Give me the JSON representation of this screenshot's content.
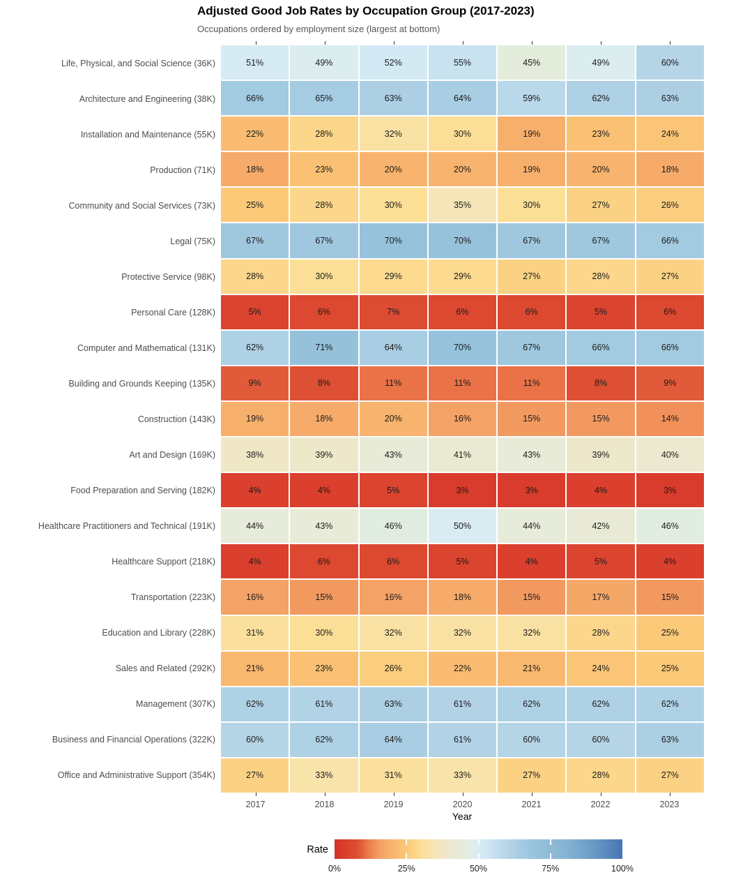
{
  "chart_data": {
    "type": "heatmap",
    "title": "Adjusted Good Job Rates by Occupation Group (2017-2023)",
    "subtitle": "Occupations ordered by employment size (largest at bottom)",
    "xlabel": "Year",
    "x": [
      "2017",
      "2018",
      "2019",
      "2020",
      "2021",
      "2022",
      "2023"
    ],
    "value_suffix": "%",
    "rows": [
      {
        "label": "Life, Physical, and Social Science (36K)",
        "values": [
          51,
          49,
          52,
          55,
          45,
          49,
          60
        ]
      },
      {
        "label": "Architecture and Engineering (38K)",
        "values": [
          66,
          65,
          63,
          64,
          59,
          62,
          63
        ]
      },
      {
        "label": "Installation and Maintenance (55K)",
        "values": [
          22,
          28,
          32,
          30,
          19,
          23,
          24
        ]
      },
      {
        "label": "Production (71K)",
        "values": [
          18,
          23,
          20,
          20,
          19,
          20,
          18
        ]
      },
      {
        "label": "Community and Social Services (73K)",
        "values": [
          25,
          28,
          30,
          35,
          30,
          27,
          26
        ]
      },
      {
        "label": "Legal (75K)",
        "values": [
          67,
          67,
          70,
          70,
          67,
          67,
          66
        ]
      },
      {
        "label": "Protective Service (98K)",
        "values": [
          28,
          30,
          29,
          29,
          27,
          28,
          27
        ]
      },
      {
        "label": "Personal Care (128K)",
        "values": [
          5,
          6,
          7,
          6,
          6,
          5,
          6
        ]
      },
      {
        "label": "Computer and Mathematical (131K)",
        "values": [
          62,
          71,
          64,
          70,
          67,
          66,
          66
        ]
      },
      {
        "label": "Building and Grounds Keeping (135K)",
        "values": [
          9,
          8,
          11,
          11,
          11,
          8,
          9
        ]
      },
      {
        "label": "Construction (143K)",
        "values": [
          19,
          18,
          20,
          16,
          15,
          15,
          14
        ]
      },
      {
        "label": "Art and Design (169K)",
        "values": [
          38,
          39,
          43,
          41,
          43,
          39,
          40
        ]
      },
      {
        "label": "Food Preparation and Serving (182K)",
        "values": [
          4,
          4,
          5,
          3,
          3,
          4,
          3
        ]
      },
      {
        "label": "Healthcare Practitioners and Technical (191K)",
        "values": [
          44,
          43,
          46,
          50,
          44,
          42,
          46
        ]
      },
      {
        "label": "Healthcare Support (218K)",
        "values": [
          4,
          6,
          6,
          5,
          4,
          5,
          4
        ]
      },
      {
        "label": "Transportation (223K)",
        "values": [
          16,
          15,
          16,
          18,
          15,
          17,
          15
        ]
      },
      {
        "label": "Education and Library (228K)",
        "values": [
          31,
          30,
          32,
          32,
          32,
          28,
          25
        ]
      },
      {
        "label": "Sales and Related (292K)",
        "values": [
          21,
          23,
          26,
          22,
          21,
          24,
          25
        ]
      },
      {
        "label": "Management (307K)",
        "values": [
          62,
          61,
          63,
          61,
          62,
          62,
          62
        ]
      },
      {
        "label": "Business and Financial Operations (322K)",
        "values": [
          60,
          62,
          64,
          61,
          60,
          60,
          63
        ]
      },
      {
        "label": "Office and Administrative Support (354K)",
        "values": [
          27,
          33,
          31,
          33,
          27,
          28,
          27
        ]
      }
    ],
    "legend": {
      "label": "Rate",
      "min": 0,
      "max": 100,
      "ticks": [
        "0%",
        "25%",
        "50%",
        "75%",
        "100%"
      ],
      "tick_positions": [
        0,
        0.25,
        0.5,
        0.75,
        1
      ]
    },
    "color_scale": {
      "stops": [
        [
          0.0,
          "#d73027"
        ],
        [
          0.08,
          "#dd5033"
        ],
        [
          0.12,
          "#ed7d4e"
        ],
        [
          0.16,
          "#f4a265"
        ],
        [
          0.2,
          "#f8b46e"
        ],
        [
          0.25,
          "#fbc978"
        ],
        [
          0.3,
          "#fcdf96"
        ],
        [
          0.35,
          "#f5e5b8"
        ],
        [
          0.4,
          "#ece9d0"
        ],
        [
          0.45,
          "#e4ecdc"
        ],
        [
          0.48,
          "#dfeeee"
        ],
        [
          0.52,
          "#d3eaf5"
        ],
        [
          0.6,
          "#b5d5e7"
        ],
        [
          0.7,
          "#96c2dc"
        ],
        [
          0.8,
          "#88b4d4"
        ],
        [
          0.9,
          "#699bc6"
        ],
        [
          1.0,
          "#4575b4"
        ]
      ]
    },
    "layout": {
      "grid": false,
      "legend_position": "bottom",
      "cell_text_color": "#1a1a1a",
      "axis_text_color": "#4d4d4d"
    }
  }
}
